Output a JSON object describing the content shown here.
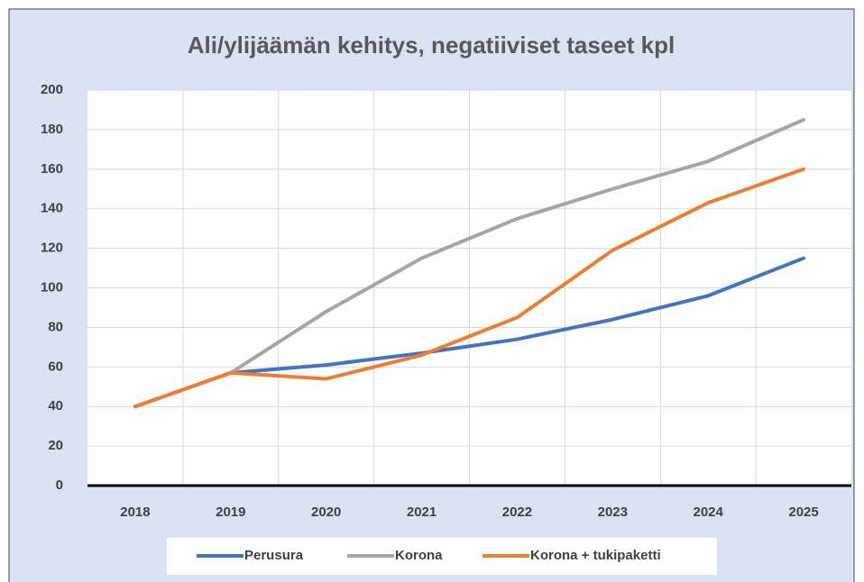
{
  "chart_data": {
    "type": "line",
    "title": "Ali/ylijäämän kehitys, negatiiviset taseet kpl",
    "categories": [
      "2018",
      "2019",
      "2020",
      "2021",
      "2022",
      "2023",
      "2024",
      "2025"
    ],
    "series": [
      {
        "name": "Perusura",
        "color": "#4472c4",
        "values": [
          40,
          57,
          61,
          67,
          74,
          84,
          96,
          115
        ]
      },
      {
        "name": "Korona",
        "color": "#a5a5a5",
        "values": [
          40,
          57,
          88,
          115,
          135,
          150,
          164,
          185
        ]
      },
      {
        "name": "Korona + tukipaketti",
        "color": "#ed7d31",
        "values": [
          40,
          57,
          54,
          66,
          85,
          119,
          143,
          160
        ]
      }
    ],
    "ylim": [
      0,
      200
    ],
    "yticks": [
      0,
      20,
      40,
      60,
      80,
      100,
      120,
      140,
      160,
      180,
      200
    ],
    "grid": true,
    "legend": "bottom"
  }
}
